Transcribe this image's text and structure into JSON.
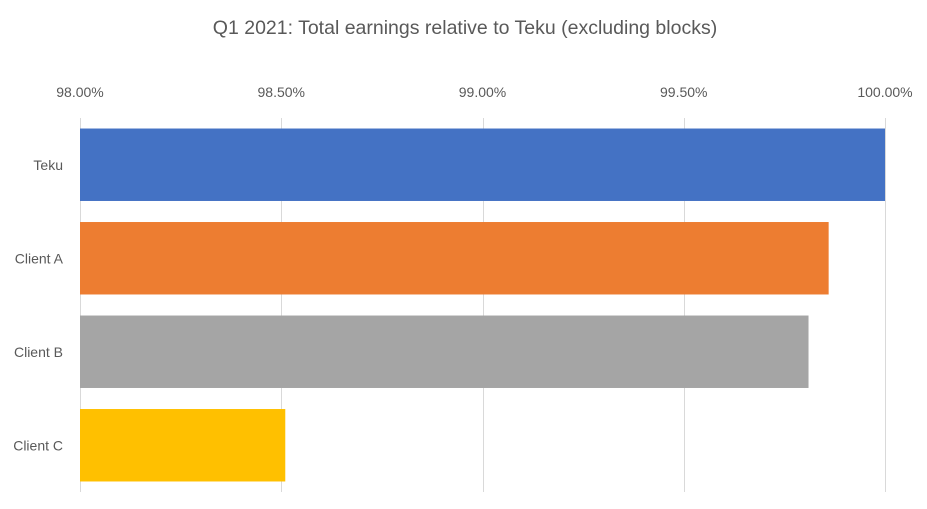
{
  "chart_data": {
    "type": "bar",
    "orientation": "horizontal",
    "title": "Q1 2021: Total earnings relative to Teku (excluding blocks)",
    "xlabel": "",
    "ylabel": "",
    "xlim": [
      98.0,
      100.0
    ],
    "x_axis_position": "top",
    "x_ticks": [
      98.0,
      98.5,
      99.0,
      99.5,
      100.0
    ],
    "x_tick_labels": [
      "98.00%",
      "98.50%",
      "99.00%",
      "99.50%",
      "100.00%"
    ],
    "grid": true,
    "legend": "none",
    "categories": [
      "Teku",
      "Client A",
      "Client B",
      "Client C"
    ],
    "values": [
      100.0,
      99.86,
      99.81,
      98.51
    ],
    "colors": [
      "#4472C4",
      "#ED7D31",
      "#A5A5A5",
      "#FFC000"
    ]
  },
  "style": {
    "gridline_color": "#d9d9d9",
    "text_color": "#595959",
    "background": "#ffffff"
  }
}
